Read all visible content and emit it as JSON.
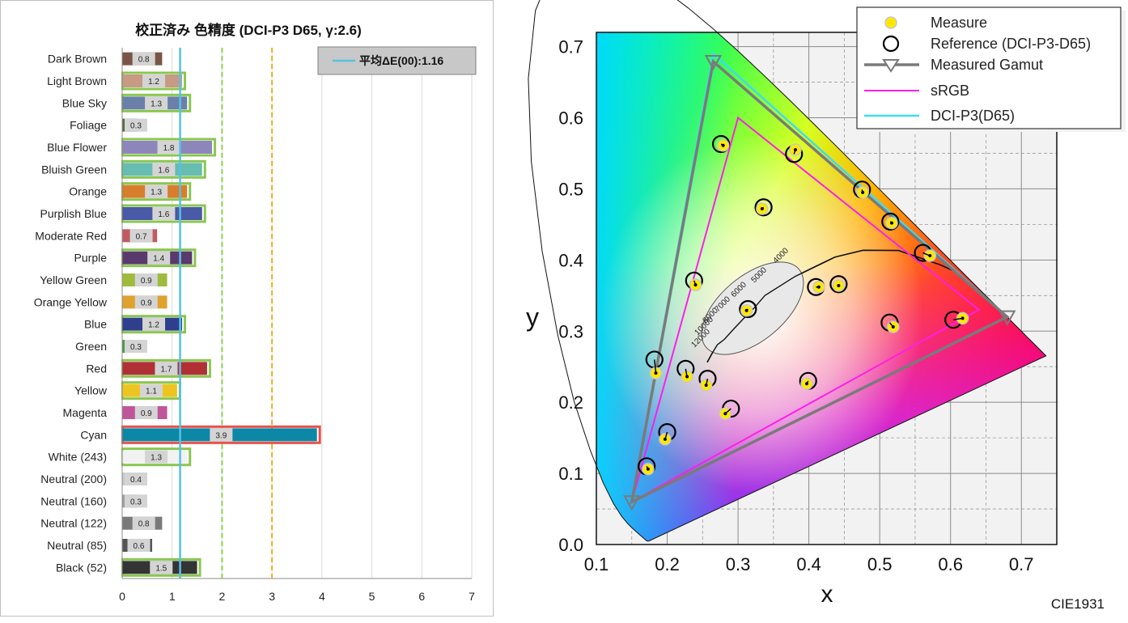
{
  "chart_data": [
    {
      "type": "bar",
      "orientation": "horizontal",
      "title": "校正済み 色精度 (DCI-P3 D65, γ:2.6)",
      "legend": {
        "label": "平均ΔE(00):1.16",
        "position": "top-right"
      },
      "average": 1.16,
      "reference_lines": [
        2,
        3
      ],
      "xlim": [
        0,
        7
      ],
      "xticks": [
        "0",
        "1",
        "2",
        "3",
        "4",
        "5",
        "6",
        "7"
      ],
      "categories": [
        "Dark Brown",
        "Light Brown",
        "Blue Sky",
        "Foliage",
        "Blue Flower",
        "Bluish Green",
        "Orange",
        "Purplish Blue",
        "Moderate Red",
        "Purple",
        "Yellow Green",
        "Orange Yellow",
        "Blue",
        "Green",
        "Red",
        "Yellow",
        "Magenta",
        "Cyan",
        "White (243)",
        "Neutral (200)",
        "Neutral (160)",
        "Neutral (122)",
        "Neutral (85)",
        "Black (52)"
      ],
      "values": [
        0.8,
        1.2,
        1.3,
        0.3,
        1.8,
        1.6,
        1.3,
        1.6,
        0.7,
        1.4,
        0.9,
        0.9,
        1.2,
        0.3,
        1.7,
        1.1,
        0.9,
        3.9,
        1.3,
        0.4,
        0.3,
        0.8,
        0.6,
        1.5
      ],
      "labels": [
        "0.8",
        "1.2",
        "1.3",
        "0.3",
        "1.8",
        "1.6",
        "1.3",
        "1.6",
        "0.7",
        "1.4",
        "0.9",
        "0.9",
        "1.2",
        "0.3",
        "1.7",
        "1.1",
        "0.9",
        "3.9",
        "1.3",
        "0.4",
        "0.3",
        "0.8",
        "0.6",
        "1.5"
      ],
      "bar_colors": [
        "#7a5547",
        "#c79a84",
        "#6a80a8",
        "#5b6b3c",
        "#8d86bb",
        "#66bdb0",
        "#d77e2c",
        "#4a5aa6",
        "#c15a63",
        "#5a3a6c",
        "#9fbb3e",
        "#e0a22e",
        "#2f3f8e",
        "#4b9a4a",
        "#b03036",
        "#ecc521",
        "#c0569a",
        "#0c87a6",
        "#f2f2f2",
        "#c9c9c9",
        "#a0a0a0",
        "#7a7a7a",
        "#555555",
        "#343434"
      ],
      "outline_colors": [
        "none",
        "#8ac650",
        "#8ac650",
        "none",
        "#8ac650",
        "#8ac650",
        "#8ac650",
        "#8ac650",
        "none",
        "#8ac650",
        "none",
        "none",
        "#8ac650",
        "none",
        "#8ac650",
        "#8ac650",
        "none",
        "#e8514a",
        "#8ac650",
        "none",
        "none",
        "none",
        "none",
        "#8ac650"
      ]
    },
    {
      "type": "scatter",
      "title": "CIE1931",
      "xlabel": "x",
      "ylabel": "y",
      "xlim": [
        0.1,
        0.75
      ],
      "ylim": [
        0.0,
        0.72
      ],
      "xticks": [
        "0.1",
        "0.2",
        "0.3",
        "0.4",
        "0.5",
        "0.6",
        "0.7"
      ],
      "yticks": [
        "0.0",
        "0.1",
        "0.2",
        "0.3",
        "0.4",
        "0.5",
        "0.6",
        "0.7"
      ],
      "legend_position": "top-right",
      "legend": [
        "Measure",
        "Reference (DCI-P3-D65)",
        "Measured Gamut",
        "sRGB",
        "DCI-P3(D65)"
      ],
      "planckian_labels": [
        "4000",
        "5000",
        "6000",
        "7000",
        "8000",
        "10000",
        "12000"
      ],
      "series": [
        {
          "name": "Measure",
          "points": [
            [
              0.279,
              0.561
            ],
            [
              0.381,
              0.555
            ],
            [
              0.476,
              0.495
            ],
            [
              0.517,
              0.452
            ],
            [
              0.571,
              0.406
            ],
            [
              0.334,
              0.472
            ],
            [
              0.24,
              0.365
            ],
            [
              0.312,
              0.329
            ],
            [
              0.414,
              0.362
            ],
            [
              0.442,
              0.364
            ],
            [
              0.617,
              0.318
            ],
            [
              0.519,
              0.306
            ],
            [
              0.184,
              0.241
            ],
            [
              0.228,
              0.236
            ],
            [
              0.255,
              0.224
            ],
            [
              0.282,
              0.184
            ],
            [
              0.397,
              0.226
            ],
            [
              0.197,
              0.148
            ],
            [
              0.173,
              0.106
            ]
          ]
        },
        {
          "name": "Reference (DCI-P3-D65)",
          "points": [
            [
              0.276,
              0.563
            ],
            [
              0.379,
              0.549
            ],
            [
              0.475,
              0.499
            ],
            [
              0.515,
              0.454
            ],
            [
              0.561,
              0.41
            ],
            [
              0.336,
              0.474
            ],
            [
              0.238,
              0.371
            ],
            [
              0.314,
              0.331
            ],
            [
              0.41,
              0.362
            ],
            [
              0.442,
              0.366
            ],
            [
              0.604,
              0.316
            ],
            [
              0.514,
              0.312
            ],
            [
              0.182,
              0.26
            ],
            [
              0.226,
              0.247
            ],
            [
              0.257,
              0.233
            ],
            [
              0.29,
              0.191
            ],
            [
              0.399,
              0.23
            ],
            [
              0.2,
              0.158
            ],
            [
              0.171,
              0.11
            ]
          ]
        },
        {
          "name": "Measured Gamut",
          "points": [
            [
              0.68,
              0.32
            ],
            [
              0.265,
              0.679
            ],
            [
              0.15,
              0.06
            ]
          ]
        },
        {
          "name": "sRGB",
          "points": [
            [
              0.64,
              0.33
            ],
            [
              0.3,
              0.6
            ],
            [
              0.15,
              0.06
            ]
          ]
        },
        {
          "name": "DCI-P3(D65)",
          "points": [
            [
              0.68,
              0.32
            ],
            [
              0.265,
              0.69
            ],
            [
              0.15,
              0.06
            ]
          ]
        }
      ]
    }
  ]
}
